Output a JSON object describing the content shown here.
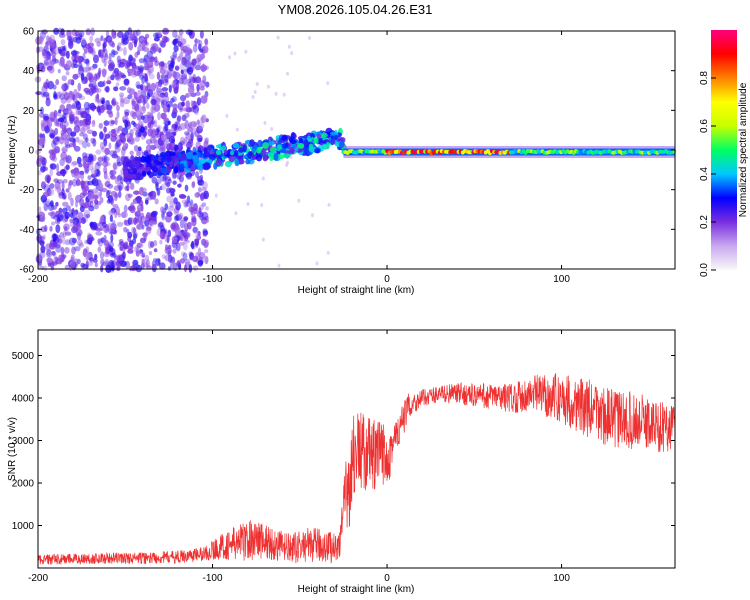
{
  "figure_title": "YM08.2026.105.04.26.E31",
  "chart_data": [
    {
      "type": "heatmap",
      "title": "YM08.2026.105.04.26.E31",
      "xlabel": "Height of straight line (km)",
      "ylabel": "Frequency (Hz)",
      "xlim": [
        -200,
        165
      ],
      "ylim": [
        -60,
        60
      ],
      "xticks": [
        -200,
        -100,
        0,
        100
      ],
      "yticks": [
        -60,
        -40,
        -20,
        0,
        20,
        40,
        60
      ],
      "grid": false,
      "colorbar": {
        "label": "Normalized spectral amplitude",
        "range": [
          0,
          1
        ],
        "ticks": [
          0.0,
          0.2,
          0.4,
          0.6,
          0.8
        ],
        "colormap": [
          "#f8f8f8",
          "#c9a8f0",
          "#7a2ee0",
          "#0000ff",
          "#00c8ff",
          "#00ff60",
          "#c8ff00",
          "#ffff00",
          "#ff8000",
          "#ff0000",
          "#ff0080"
        ]
      },
      "regions": [
        {
          "description": "scattered noise",
          "x": [
            -200,
            -103
          ],
          "freq": [
            -60,
            60
          ],
          "amplitude": [
            0.05,
            0.2
          ]
        },
        {
          "description": "rising signal trace",
          "x": [
            -150,
            -25
          ],
          "freq_start": -10,
          "freq_end": 6,
          "amplitude": [
            0.2,
            0.5
          ]
        },
        {
          "description": "steady line near 0 Hz",
          "x": [
            -25,
            165
          ],
          "freq": [
            -3,
            1
          ],
          "amplitude": [
            0.4,
            1.0
          ]
        }
      ]
    },
    {
      "type": "line",
      "xlabel": "Height of straight line (km)",
      "ylabel": "SNR (10 * v/v)",
      "xlim": [
        -200,
        165
      ],
      "ylim": [
        0,
        5600
      ],
      "xticks": [
        -200,
        -100,
        0,
        100
      ],
      "yticks": [
        1000,
        2000,
        3000,
        4000,
        5000
      ],
      "grid": false,
      "series": [
        {
          "color": "#ee3030",
          "x": [
            -200,
            -180,
            -160,
            -140,
            -120,
            -105,
            -95,
            -85,
            -75,
            -65,
            -55,
            -45,
            -35,
            -28,
            -22,
            -18,
            -12,
            -6,
            0,
            6,
            12,
            20,
            30,
            40,
            55,
            70,
            85,
            100,
            115,
            130,
            145,
            160,
            165
          ],
          "y": [
            200,
            210,
            230,
            230,
            260,
            330,
            500,
            600,
            700,
            550,
            450,
            550,
            520,
            480,
            2000,
            2800,
            2700,
            2600,
            2700,
            3100,
            3800,
            4000,
            4100,
            4100,
            4050,
            4000,
            4100,
            4000,
            3750,
            3500,
            3450,
            3300,
            3400
          ],
          "noise": [
            120,
            130,
            130,
            140,
            150,
            180,
            300,
            450,
            500,
            400,
            350,
            400,
            400,
            350,
            1200,
            1000,
            900,
            900,
            800,
            500,
            300,
            200,
            200,
            250,
            300,
            350,
            450,
            600,
            700,
            700,
            650,
            600,
            600
          ]
        }
      ]
    }
  ]
}
